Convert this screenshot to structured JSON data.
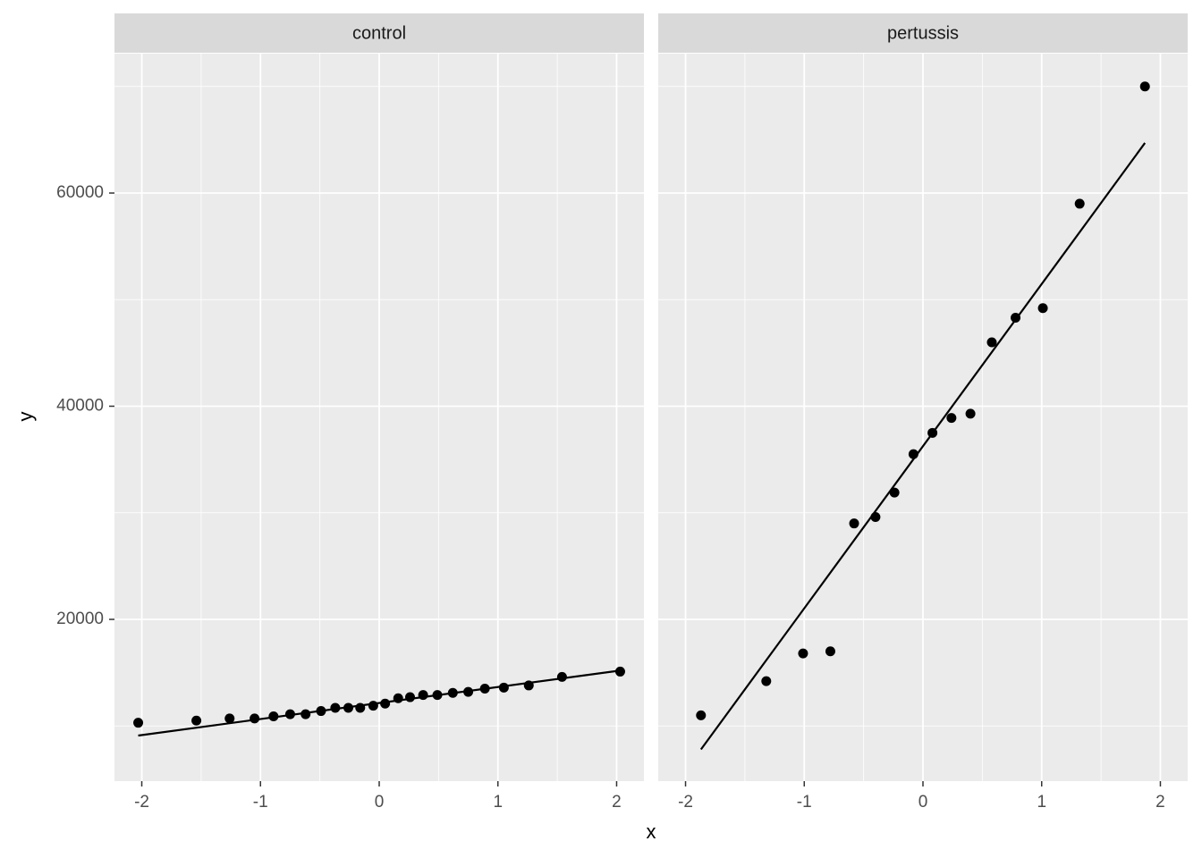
{
  "chart_data": {
    "type": "scatter",
    "xlabel": "x",
    "ylabel": "y",
    "xlim": [
      -2.23,
      2.23
    ],
    "ylim": [
      4822,
      73082
    ],
    "xticks": [
      -2,
      -1,
      0,
      1,
      2
    ],
    "xminor": [
      -1.5,
      -0.5,
      0.5,
      1.5
    ],
    "yticks": [
      20000,
      40000,
      60000
    ],
    "yminor": [
      10000,
      30000,
      50000,
      70000
    ],
    "grid": true,
    "color": "#000000",
    "panels": [
      {
        "title": "control",
        "x": [
          -2.03,
          -1.54,
          -1.26,
          -1.05,
          -0.89,
          -0.75,
          -0.62,
          -0.49,
          -0.37,
          -0.26,
          -0.16,
          -0.05,
          0.05,
          0.16,
          0.26,
          0.37,
          0.49,
          0.62,
          0.75,
          0.89,
          1.05,
          1.26,
          1.54,
          2.03
        ],
        "values": [
          10300,
          10500,
          10700,
          10700,
          10900,
          11100,
          11100,
          11400,
          11700,
          11700,
          11700,
          11900,
          12100,
          12600,
          12700,
          12900,
          12900,
          13100,
          13200,
          13500,
          13600,
          13800,
          14600,
          15100
        ],
        "fit": {
          "x": [
            -2.03,
            2.03
          ],
          "values": [
            9100,
            15200
          ]
        }
      },
      {
        "title": "pertussis",
        "x": [
          -1.87,
          -1.32,
          -1.01,
          -0.78,
          -0.58,
          -0.4,
          -0.24,
          -0.08,
          0.08,
          0.24,
          0.4,
          0.58,
          0.78,
          1.01,
          1.32,
          1.87
        ],
        "values": [
          11000,
          14200,
          16800,
          17000,
          29000,
          29600,
          31900,
          35500,
          37500,
          38900,
          39300,
          46000,
          48300,
          49200,
          59000,
          70000
        ],
        "fit": {
          "x": [
            -1.87,
            1.87
          ],
          "values": [
            7800,
            64700
          ]
        }
      }
    ]
  }
}
